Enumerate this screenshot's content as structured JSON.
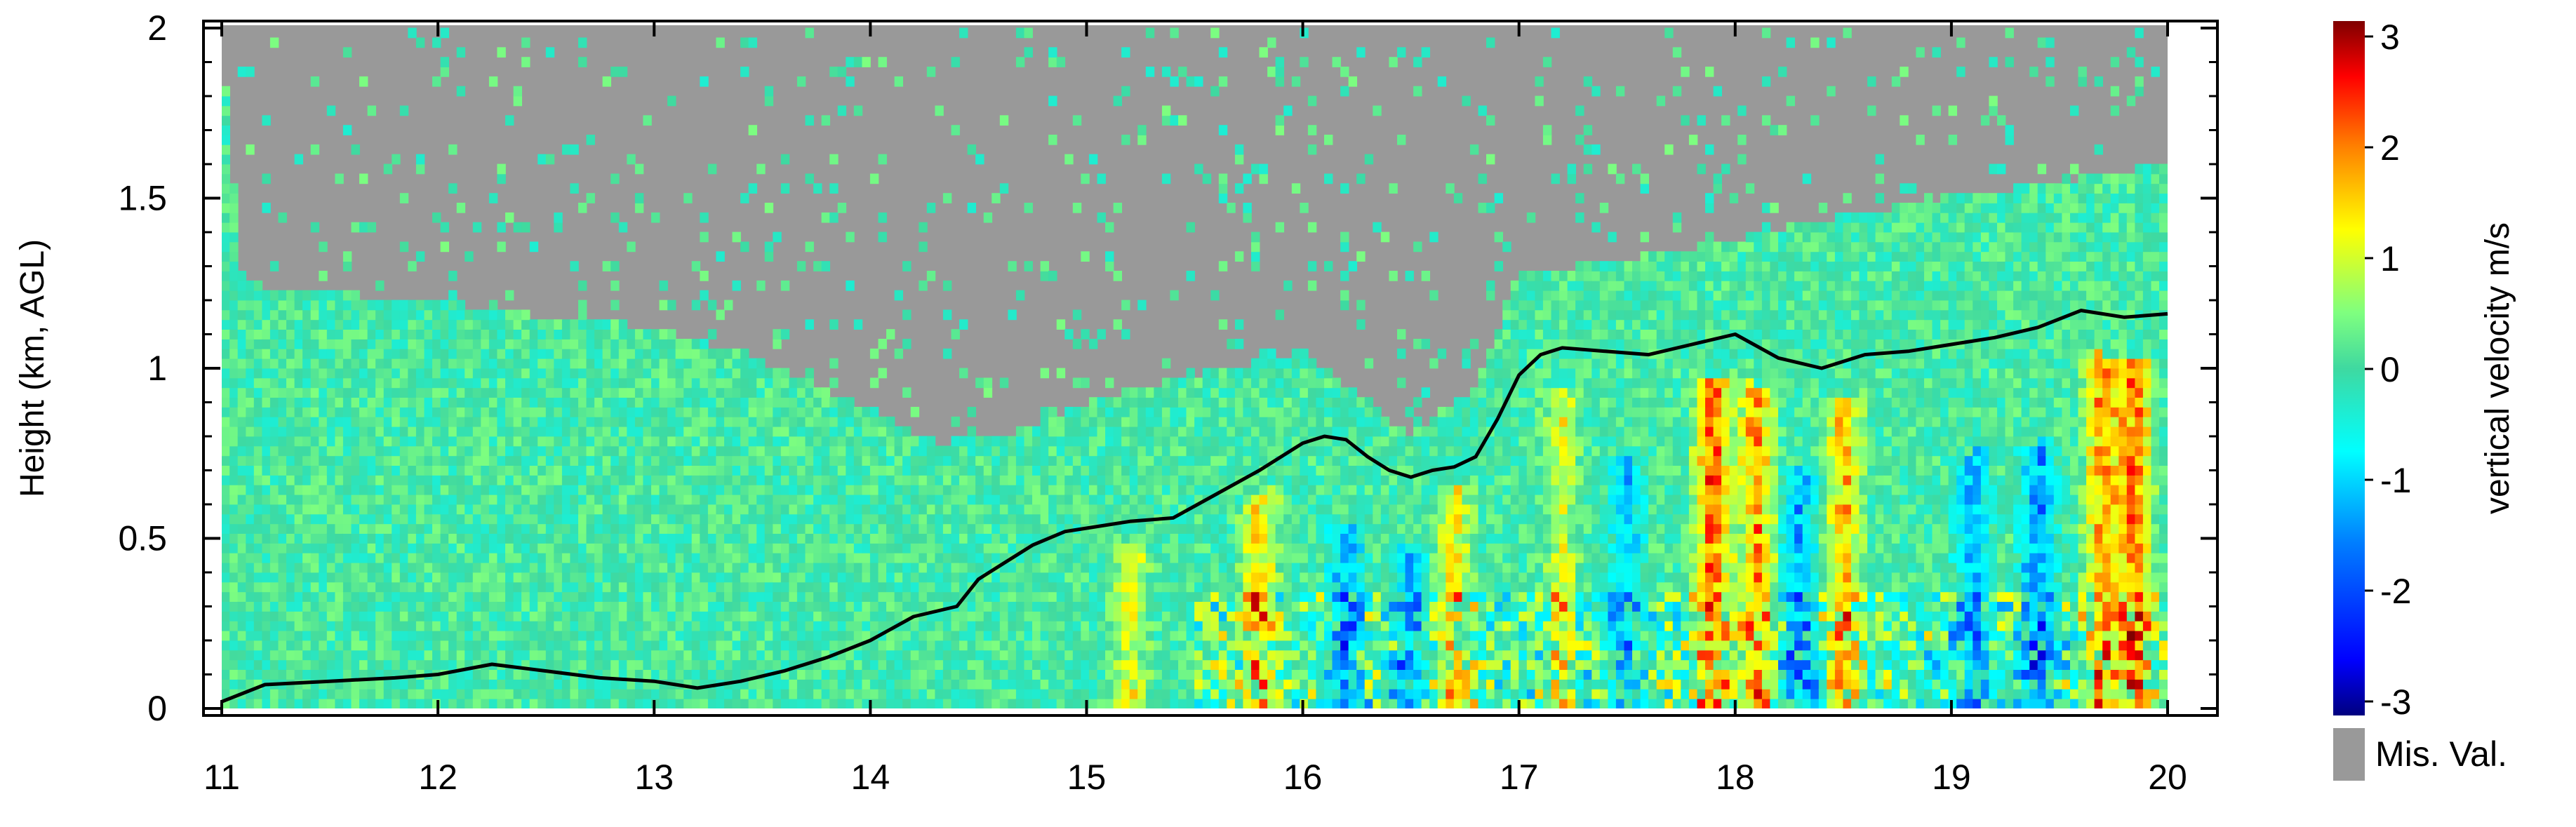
{
  "chart_data": {
    "type": "heatmap",
    "title": "",
    "xlabel": "",
    "ylabel": "Height (km, AGL)",
    "xlim": [
      11,
      20
    ],
    "ylim": [
      0,
      2
    ],
    "x_ticks": [
      "11",
      "12",
      "13",
      "14",
      "15",
      "16",
      "17",
      "18",
      "19",
      "20"
    ],
    "y_ticks": [
      "0",
      "0.5",
      "1",
      "1.5",
      "2"
    ],
    "colorbar": {
      "label": "vertical velocity m/s",
      "range": [
        -3,
        3
      ],
      "ticks": [
        "3",
        "2",
        "1",
        "0",
        "-1",
        "-2",
        "-3"
      ],
      "missing_label": "Mis. Val.",
      "missing_color": "#999999",
      "colormap": [
        "#00007f",
        "#0000ff",
        "#007fff",
        "#00ffff",
        "#3fd9a0",
        "#7fff7f",
        "#ffff00",
        "#ff7f00",
        "#ff0000",
        "#7f0000"
      ]
    },
    "series": [
      {
        "type": "line",
        "color": "#000000",
        "x": [
          11.0,
          11.2,
          11.5,
          11.8,
          12.0,
          12.25,
          12.5,
          12.75,
          13.0,
          13.2,
          13.4,
          13.6,
          13.8,
          14.0,
          14.2,
          14.4,
          14.5,
          14.6,
          14.75,
          14.9,
          15.0,
          15.2,
          15.4,
          15.6,
          15.8,
          16.0,
          16.1,
          16.2,
          16.3,
          16.4,
          16.5,
          16.6,
          16.7,
          16.8,
          16.9,
          17.0,
          17.1,
          17.2,
          17.4,
          17.6,
          17.8,
          18.0,
          18.2,
          18.4,
          18.6,
          18.8,
          19.0,
          19.2,
          19.4,
          19.6,
          19.8,
          20.0
        ],
        "y": [
          0.02,
          0.07,
          0.08,
          0.09,
          0.1,
          0.13,
          0.11,
          0.09,
          0.08,
          0.06,
          0.08,
          0.11,
          0.15,
          0.2,
          0.27,
          0.3,
          0.38,
          0.42,
          0.48,
          0.52,
          0.53,
          0.55,
          0.56,
          0.63,
          0.7,
          0.78,
          0.8,
          0.79,
          0.74,
          0.7,
          0.68,
          0.7,
          0.71,
          0.74,
          0.85,
          0.98,
          1.04,
          1.06,
          1.05,
          1.04,
          1.07,
          1.1,
          1.03,
          1.0,
          1.04,
          1.05,
          1.07,
          1.09,
          1.12,
          1.17,
          1.15,
          1.16
        ]
      }
    ]
  }
}
